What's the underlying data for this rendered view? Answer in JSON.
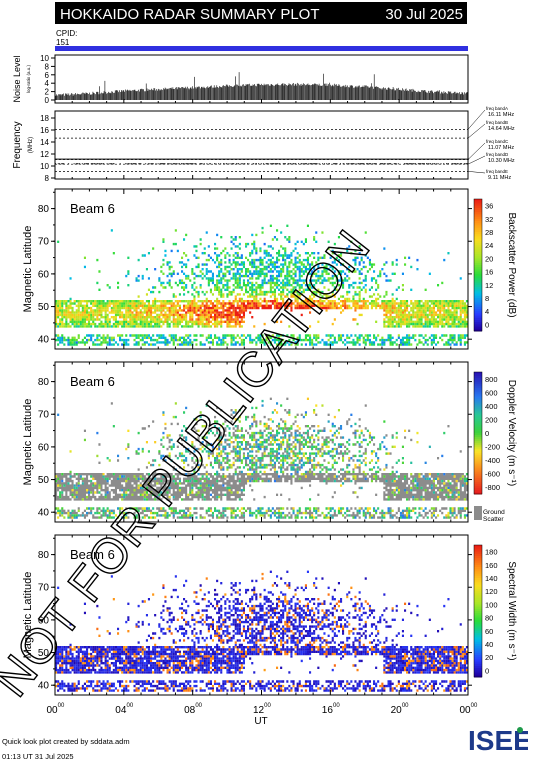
{
  "header": {
    "title": "HOKKAIDO RADAR SUMMARY PLOT",
    "date": "30 Jul 2025"
  },
  "cpid": {
    "label": "CPID:",
    "value": "151"
  },
  "noise_panel": {
    "ylabel": "Noise Level",
    "ylabel_sub": "log-ratio (a.u.)",
    "ticks": [
      "10",
      "8",
      "6",
      "4",
      "2",
      "0"
    ]
  },
  "freq_panel": {
    "ylabel": "Frequency",
    "ylabel_sub": "(MHz)",
    "ticks": [
      "18",
      "16",
      "14",
      "12",
      "10",
      "8"
    ],
    "bands": [
      {
        "label": "freq bandA",
        "value": "16.11 MHz"
      },
      {
        "label": "freq bandB",
        "value": "14.64 MHz"
      },
      {
        "label": "freq bandC",
        "value": "11.07 MHz"
      },
      {
        "label": "freq bandD",
        "value": "10.30 MHz"
      },
      {
        "label": "freq bandE",
        "value": "9.11 MHz"
      }
    ]
  },
  "panels": [
    {
      "beam": "Beam  6",
      "ylabel": "Magnetic Latitude",
      "cbar_label": "Backscatter Power (dB)",
      "cbar_ticks": [
        "36",
        "32",
        "28",
        "24",
        "20",
        "16",
        "12",
        "8",
        "4",
        "0"
      ]
    },
    {
      "beam": "Beam  6",
      "ylabel": "Magnetic Latitude",
      "cbar_label": "Doppler Velocity (m s⁻¹)",
      "cbar_ticks": [
        "800",
        "600",
        "400",
        "200",
        "0",
        "-200",
        "-400",
        "-600",
        "-800"
      ],
      "ground_label": "Ground",
      "scatter_label": "Scatter"
    },
    {
      "beam": "Beam  6",
      "ylabel": "Magnetic Latitude",
      "cbar_label": "Spectral Width (m s⁻¹)",
      "cbar_ticks": [
        "180",
        "160",
        "140",
        "120",
        "100",
        "80",
        "60",
        "40",
        "20",
        "0"
      ]
    }
  ],
  "lat_ticks": [
    "80",
    "70",
    "60",
    "50",
    "40"
  ],
  "x_axis": {
    "label": "UT",
    "ticks": [
      "00",
      "04",
      "08",
      "12",
      "16",
      "20",
      "00"
    ],
    "tick_sup": "00"
  },
  "watermark": "NOT FOR PUBLICATION",
  "footer": {
    "line1": "Quick look plot created by sddata.adm",
    "line2": "01:13 UT 31 Jul 2025"
  },
  "logo": {
    "text": "ISEE"
  },
  "colors": {
    "cpid_bar": "#3030e0",
    "ground_scatter": "#8c8c8c",
    "accent_blue": "#2020d8"
  },
  "chart_data": [
    {
      "type": "line",
      "title": "Noise Level",
      "xlabel": "UT",
      "ylim": [
        0,
        10
      ],
      "xlim": [
        0,
        24
      ],
      "series": [
        {
          "x": [
            0,
            2,
            4,
            6,
            8,
            10,
            12,
            14,
            16,
            18,
            20,
            22,
            24
          ],
          "values": [
            0.8,
            1.2,
            1.8,
            2.2,
            2.6,
            3.0,
            3.3,
            3.4,
            3.2,
            2.8,
            2.2,
            1.6,
            1.2
          ]
        }
      ]
    },
    {
      "type": "scatter",
      "title": "Frequency",
      "xlabel": "UT",
      "ylim": [
        8,
        19
      ],
      "xlim": [
        0,
        24
      ],
      "reference_lines_mhz": [
        16.11,
        14.64,
        11.07,
        10.3,
        9.11
      ]
    },
    {
      "type": "heatmap",
      "title": "Backscatter Power (dB)",
      "xlabel": "UT",
      "ylabel": "Magnetic Latitude",
      "xlim": [
        0,
        24
      ],
      "ylim": [
        37,
        86
      ],
      "zlim": [
        0,
        40
      ]
    },
    {
      "type": "heatmap",
      "title": "Doppler Velocity (m s⁻¹)",
      "xlabel": "UT",
      "ylabel": "Magnetic Latitude",
      "xlim": [
        0,
        24
      ],
      "ylim": [
        37,
        86
      ],
      "zlim": [
        -900,
        900
      ]
    },
    {
      "type": "heatmap",
      "title": "Spectral Width (m s⁻¹)",
      "xlabel": "UT",
      "ylabel": "Magnetic Latitude",
      "xlim": [
        0,
        24
      ],
      "ylim": [
        37,
        86
      ],
      "zlim": [
        0,
        190
      ]
    }
  ]
}
